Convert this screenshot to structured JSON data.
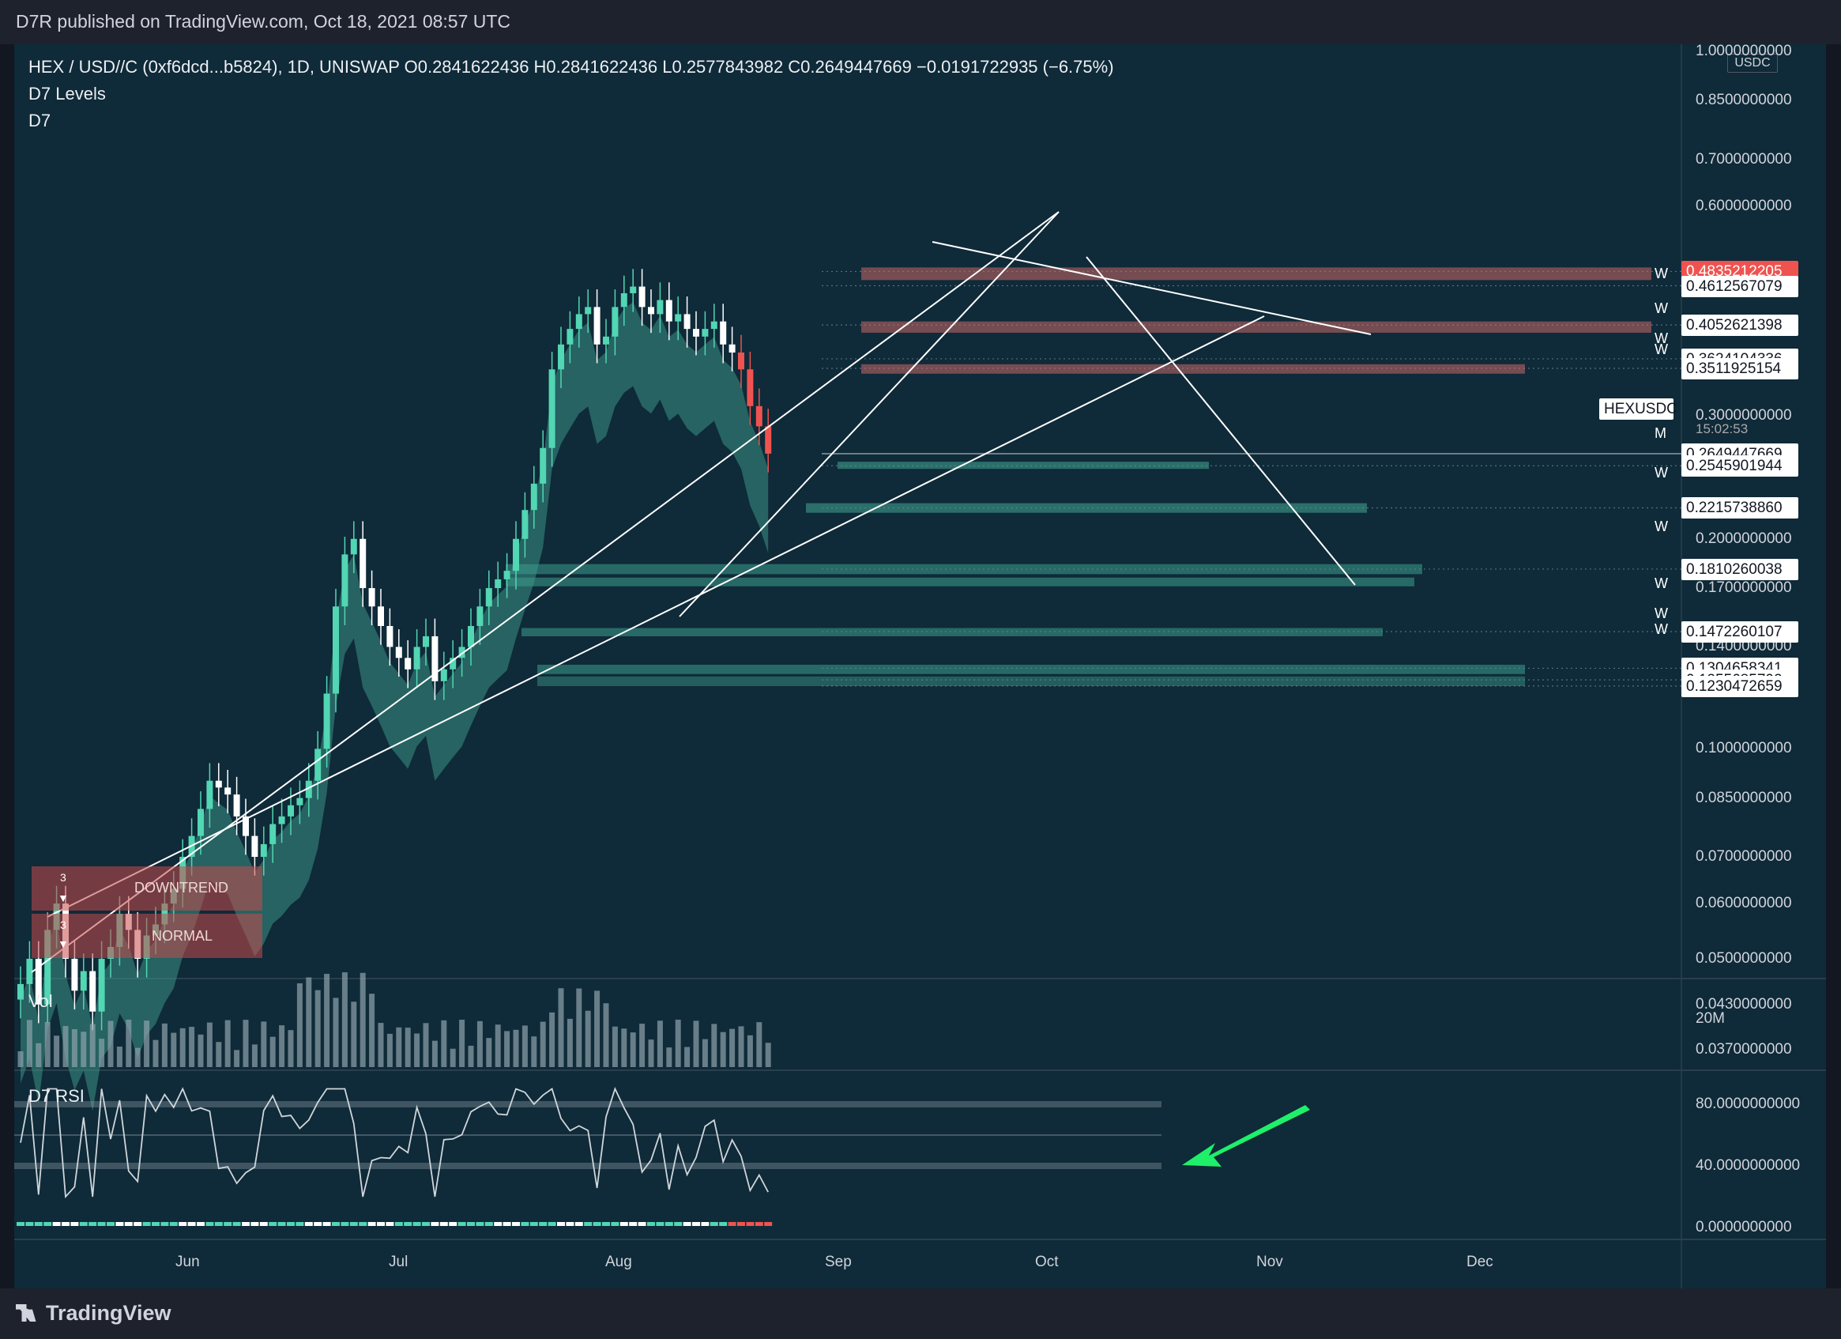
{
  "header": {
    "published": "D7R published on TradingView.com, Oct 18, 2021 08:57 UTC"
  },
  "legend": {
    "line1": "HEX / USD//C (0xf6dcd...b5824), 1D, UNISWAP  O0.2841622436  H0.2841622436  L0.2577843982  C0.2649447669  −0.0191722935 (−6.75%)",
    "line2": "D7 Levels",
    "line3": "D7"
  },
  "panes": {
    "volume_label": "Vol",
    "volume_scale": "20M",
    "rsi_label": "D7 RSI",
    "currency": "USDC"
  },
  "badges": {
    "symbol": "HEXUSDC",
    "countdown": "15:02:53",
    "downtrend": "DOWNTREND",
    "normal": "NORMAL",
    "count": "3",
    "m": "M",
    "w": "W"
  },
  "footer": {
    "brand": "TradingView"
  },
  "colors": {
    "background": "#0f2a38",
    "bull": "#52d6b3",
    "bear": "#ef5350",
    "band": "#3d9c8c",
    "resistance": "#c96868"
  },
  "chart_data": {
    "type": "candlestick",
    "price_scale": "log",
    "x_ticks": [
      "Jun",
      "Jul",
      "Aug",
      "Sep",
      "Oct",
      "Nov",
      "Dec"
    ],
    "y_ticks": [
      "1.0000000000",
      "0.8500000000",
      "0.7000000000",
      "0.6000000000",
      "0.3000000000",
      "0.2000000000",
      "0.1700000000",
      "0.1400000000",
      "0.1000000000",
      "0.0850000000",
      "0.0700000000",
      "0.0600000000",
      "0.0500000000",
      "0.0430000000",
      "0.0370000000"
    ],
    "level_labels": [
      {
        "value": "0.4835212205",
        "kind": "resistance"
      },
      {
        "value": "0.4612567079",
        "kind": "level"
      },
      {
        "value": "0.4052621398",
        "kind": "level"
      },
      {
        "value": "0.3624104336",
        "kind": "level"
      },
      {
        "value": "0.3511925154",
        "kind": "level"
      },
      {
        "value": "0.2649447669",
        "kind": "current"
      },
      {
        "value": "0.2545901944",
        "kind": "level"
      },
      {
        "value": "0.2215738860",
        "kind": "level"
      },
      {
        "value": "0.1810260038",
        "kind": "level"
      },
      {
        "value": "0.1472260107",
        "kind": "level"
      },
      {
        "value": "0.1304658341",
        "kind": "level"
      },
      {
        "value": "0.1255685792",
        "kind": "level"
      },
      {
        "value": "0.1230472659",
        "kind": "level"
      }
    ],
    "close_approx": [
      0.046,
      0.05,
      0.043,
      0.055,
      0.06,
      0.05,
      0.045,
      0.048,
      0.042,
      0.05,
      0.052,
      0.058,
      0.055,
      0.05,
      0.054,
      0.056,
      0.06,
      0.063,
      0.07,
      0.075,
      0.082,
      0.09,
      0.088,
      0.086,
      0.08,
      0.075,
      0.07,
      0.073,
      0.078,
      0.08,
      0.083,
      0.085,
      0.09,
      0.1,
      0.12,
      0.16,
      0.19,
      0.2,
      0.17,
      0.16,
      0.15,
      0.14,
      0.135,
      0.13,
      0.14,
      0.145,
      0.125,
      0.13,
      0.135,
      0.14,
      0.15,
      0.16,
      0.17,
      0.175,
      0.18,
      0.2,
      0.22,
      0.24,
      0.27,
      0.35,
      0.38,
      0.4,
      0.42,
      0.43,
      0.38,
      0.39,
      0.43,
      0.45,
      0.46,
      0.43,
      0.42,
      0.44,
      0.41,
      0.42,
      0.4,
      0.39,
      0.4,
      0.41,
      0.38,
      0.37,
      0.35,
      0.31,
      0.29,
      0.265
    ],
    "rsi": {
      "y_ticks": [
        "80.0000000000",
        "40.0000000000",
        "0.0000000000"
      ],
      "ylim": [
        0,
        100
      ]
    }
  }
}
